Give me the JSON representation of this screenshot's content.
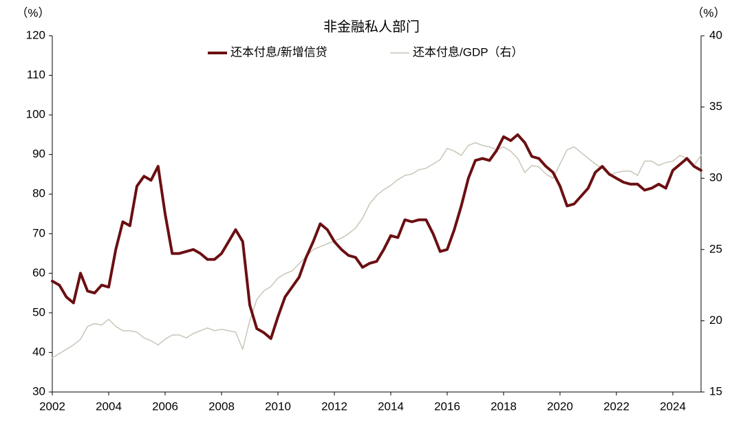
{
  "chart_data": {
    "type": "line",
    "title": "非金融私人部门",
    "y_unit": "（%）",
    "y2_unit": "（%）",
    "x": [
      2002,
      2002.25,
      2002.5,
      2002.75,
      2003,
      2003.25,
      2003.5,
      2003.75,
      2004,
      2004.25,
      2004.5,
      2004.75,
      2005,
      2005.25,
      2005.5,
      2005.75,
      2006,
      2006.25,
      2006.5,
      2006.75,
      2007,
      2007.25,
      2007.5,
      2007.75,
      2008,
      2008.25,
      2008.5,
      2008.75,
      2009,
      2009.25,
      2009.5,
      2009.75,
      2010,
      2010.25,
      2010.5,
      2010.75,
      2011,
      2011.25,
      2011.5,
      2011.75,
      2012,
      2012.25,
      2012.5,
      2012.75,
      2013,
      2013.25,
      2013.5,
      2013.75,
      2014,
      2014.25,
      2014.5,
      2014.75,
      2015,
      2015.25,
      2015.5,
      2015.75,
      2016,
      2016.25,
      2016.5,
      2016.75,
      2017,
      2017.25,
      2017.5,
      2017.75,
      2018,
      2018.25,
      2018.5,
      2018.75,
      2019,
      2019.25,
      2019.5,
      2019.75,
      2020,
      2020.25,
      2020.5,
      2020.75,
      2021,
      2021.25,
      2021.5,
      2021.75,
      2022,
      2022.25,
      2022.5,
      2022.75,
      2023,
      2023.25,
      2023.5,
      2023.75,
      2024,
      2024.25,
      2024.5,
      2024.75,
      2025
    ],
    "series": [
      {
        "name": "还本付息/新增信贷",
        "color": "#6b0f12",
        "width": 4,
        "axis": "y",
        "values": [
          58,
          57,
          54,
          52.5,
          60,
          55.5,
          55,
          57,
          56.5,
          66,
          73,
          72,
          82,
          84.5,
          83.5,
          87,
          75,
          65,
          65,
          65.5,
          66,
          65,
          63.5,
          63.5,
          65,
          68,
          71,
          68,
          52,
          46,
          45,
          43.5,
          49,
          54,
          56.5,
          59,
          64,
          68,
          72.5,
          71,
          68,
          66,
          64.5,
          64,
          61.5,
          62.5,
          63,
          66,
          69.5,
          69,
          73.5,
          73,
          73.5,
          73.5,
          70,
          65.5,
          66,
          71,
          77,
          84,
          88.5,
          89,
          88.5,
          91,
          94.5,
          93.5,
          95,
          93,
          89.5,
          89,
          87,
          85.5,
          82,
          77,
          77.5,
          79.5,
          81.5,
          85.5,
          87,
          85,
          84,
          83,
          82.5,
          82.5,
          81,
          81.5,
          82.5,
          81.5,
          86,
          87.5,
          89,
          87,
          86
        ]
      },
      {
        "name": "还本付息/GDP（右）",
        "color": "#c8c6b8",
        "width": 1.5,
        "axis": "y2",
        "values": [
          17.4,
          17.7,
          18,
          18.3,
          18.7,
          19.6,
          19.8,
          19.7,
          20.1,
          19.6,
          19.3,
          19.3,
          19.2,
          18.8,
          18.6,
          18.3,
          18.7,
          19,
          19,
          18.8,
          19.1,
          19.3,
          19.5,
          19.3,
          19.4,
          19.3,
          19.2,
          18,
          20,
          21.5,
          22.1,
          22.4,
          23,
          23.3,
          23.5,
          24,
          24.5,
          25,
          25.2,
          25.4,
          25.6,
          25.8,
          26.1,
          26.5,
          27.2,
          28.2,
          28.8,
          29.2,
          29.5,
          29.9,
          30.2,
          30.3,
          30.6,
          30.7,
          31,
          31.3,
          32.1,
          31.9,
          31.6,
          32.3,
          32.5,
          32.3,
          32.2,
          32,
          32.2,
          31.9,
          31.4,
          30.4,
          30.9,
          30.8,
          30.3,
          30,
          31,
          32,
          32.2,
          31.8,
          31.4,
          31,
          30.7,
          30.2,
          30.4,
          30.5,
          30.5,
          30.2,
          31.2,
          31.2,
          30.9,
          31.1,
          31.2,
          31.6,
          31.4,
          30.9,
          31.6
        ]
      }
    ],
    "xlim": [
      2002,
      2025
    ],
    "xticks": [
      2002,
      2004,
      2006,
      2008,
      2010,
      2012,
      2014,
      2016,
      2018,
      2020,
      2022,
      2024
    ],
    "ylim": [
      30,
      120
    ],
    "yticks": [
      30,
      40,
      50,
      60,
      70,
      80,
      90,
      100,
      110,
      120
    ],
    "y2lim": [
      15,
      40
    ],
    "y2ticks": [
      15,
      20,
      25,
      30,
      35,
      40
    ],
    "grid": false,
    "legend": "top"
  }
}
